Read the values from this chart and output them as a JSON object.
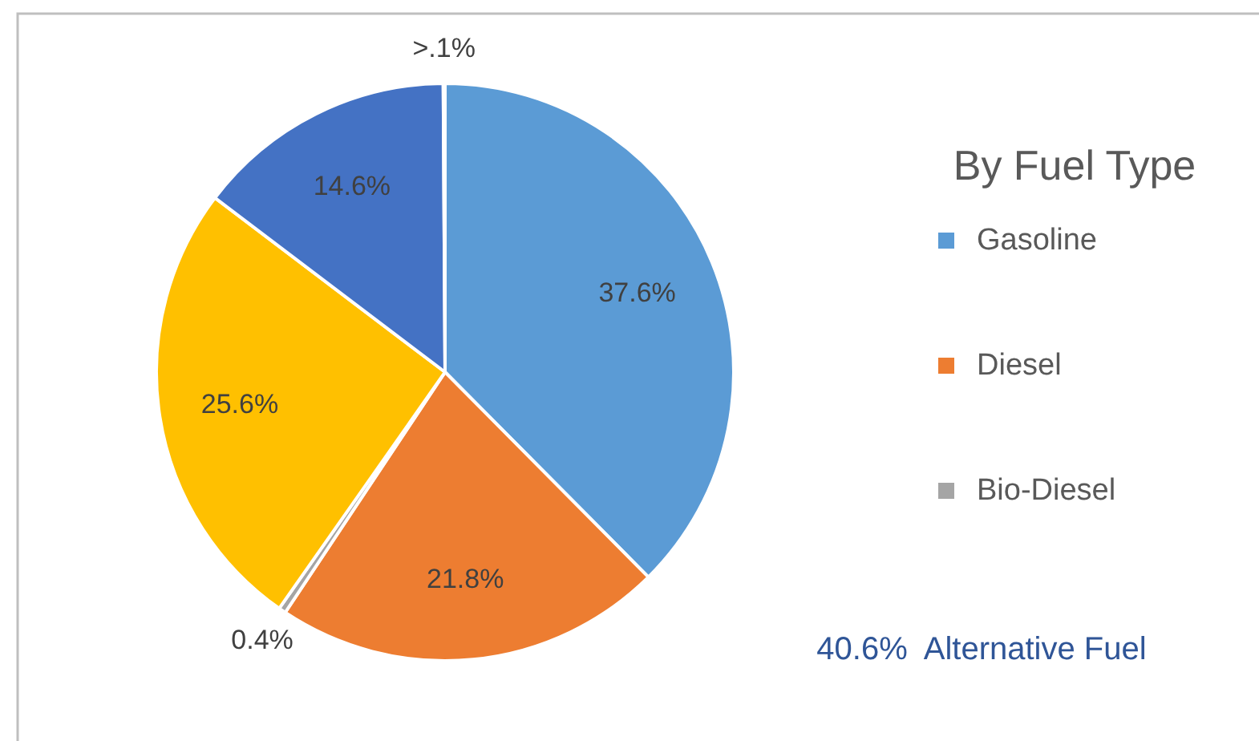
{
  "chart_data": {
    "type": "pie",
    "legend_title": "By Fuel Type",
    "categories": [
      "Gasoline",
      "Diesel",
      "Bio-Diesel",
      null,
      null,
      null
    ],
    "values": [
      37.6,
      21.8,
      0.4,
      25.6,
      14.6,
      0.1
    ],
    "colors": [
      "#5b9bd5",
      "#ed7d31",
      "#a5a5a5",
      "#ffc000",
      "#4472c4",
      "#70ad47"
    ],
    "value_labels": [
      "37.6%",
      "21.8%",
      "0.4%",
      "25.6%",
      "14.6%",
      ">.1%"
    ],
    "legend": "right",
    "annotations": [
      "40.6%  Alternative Fuel"
    ]
  }
}
